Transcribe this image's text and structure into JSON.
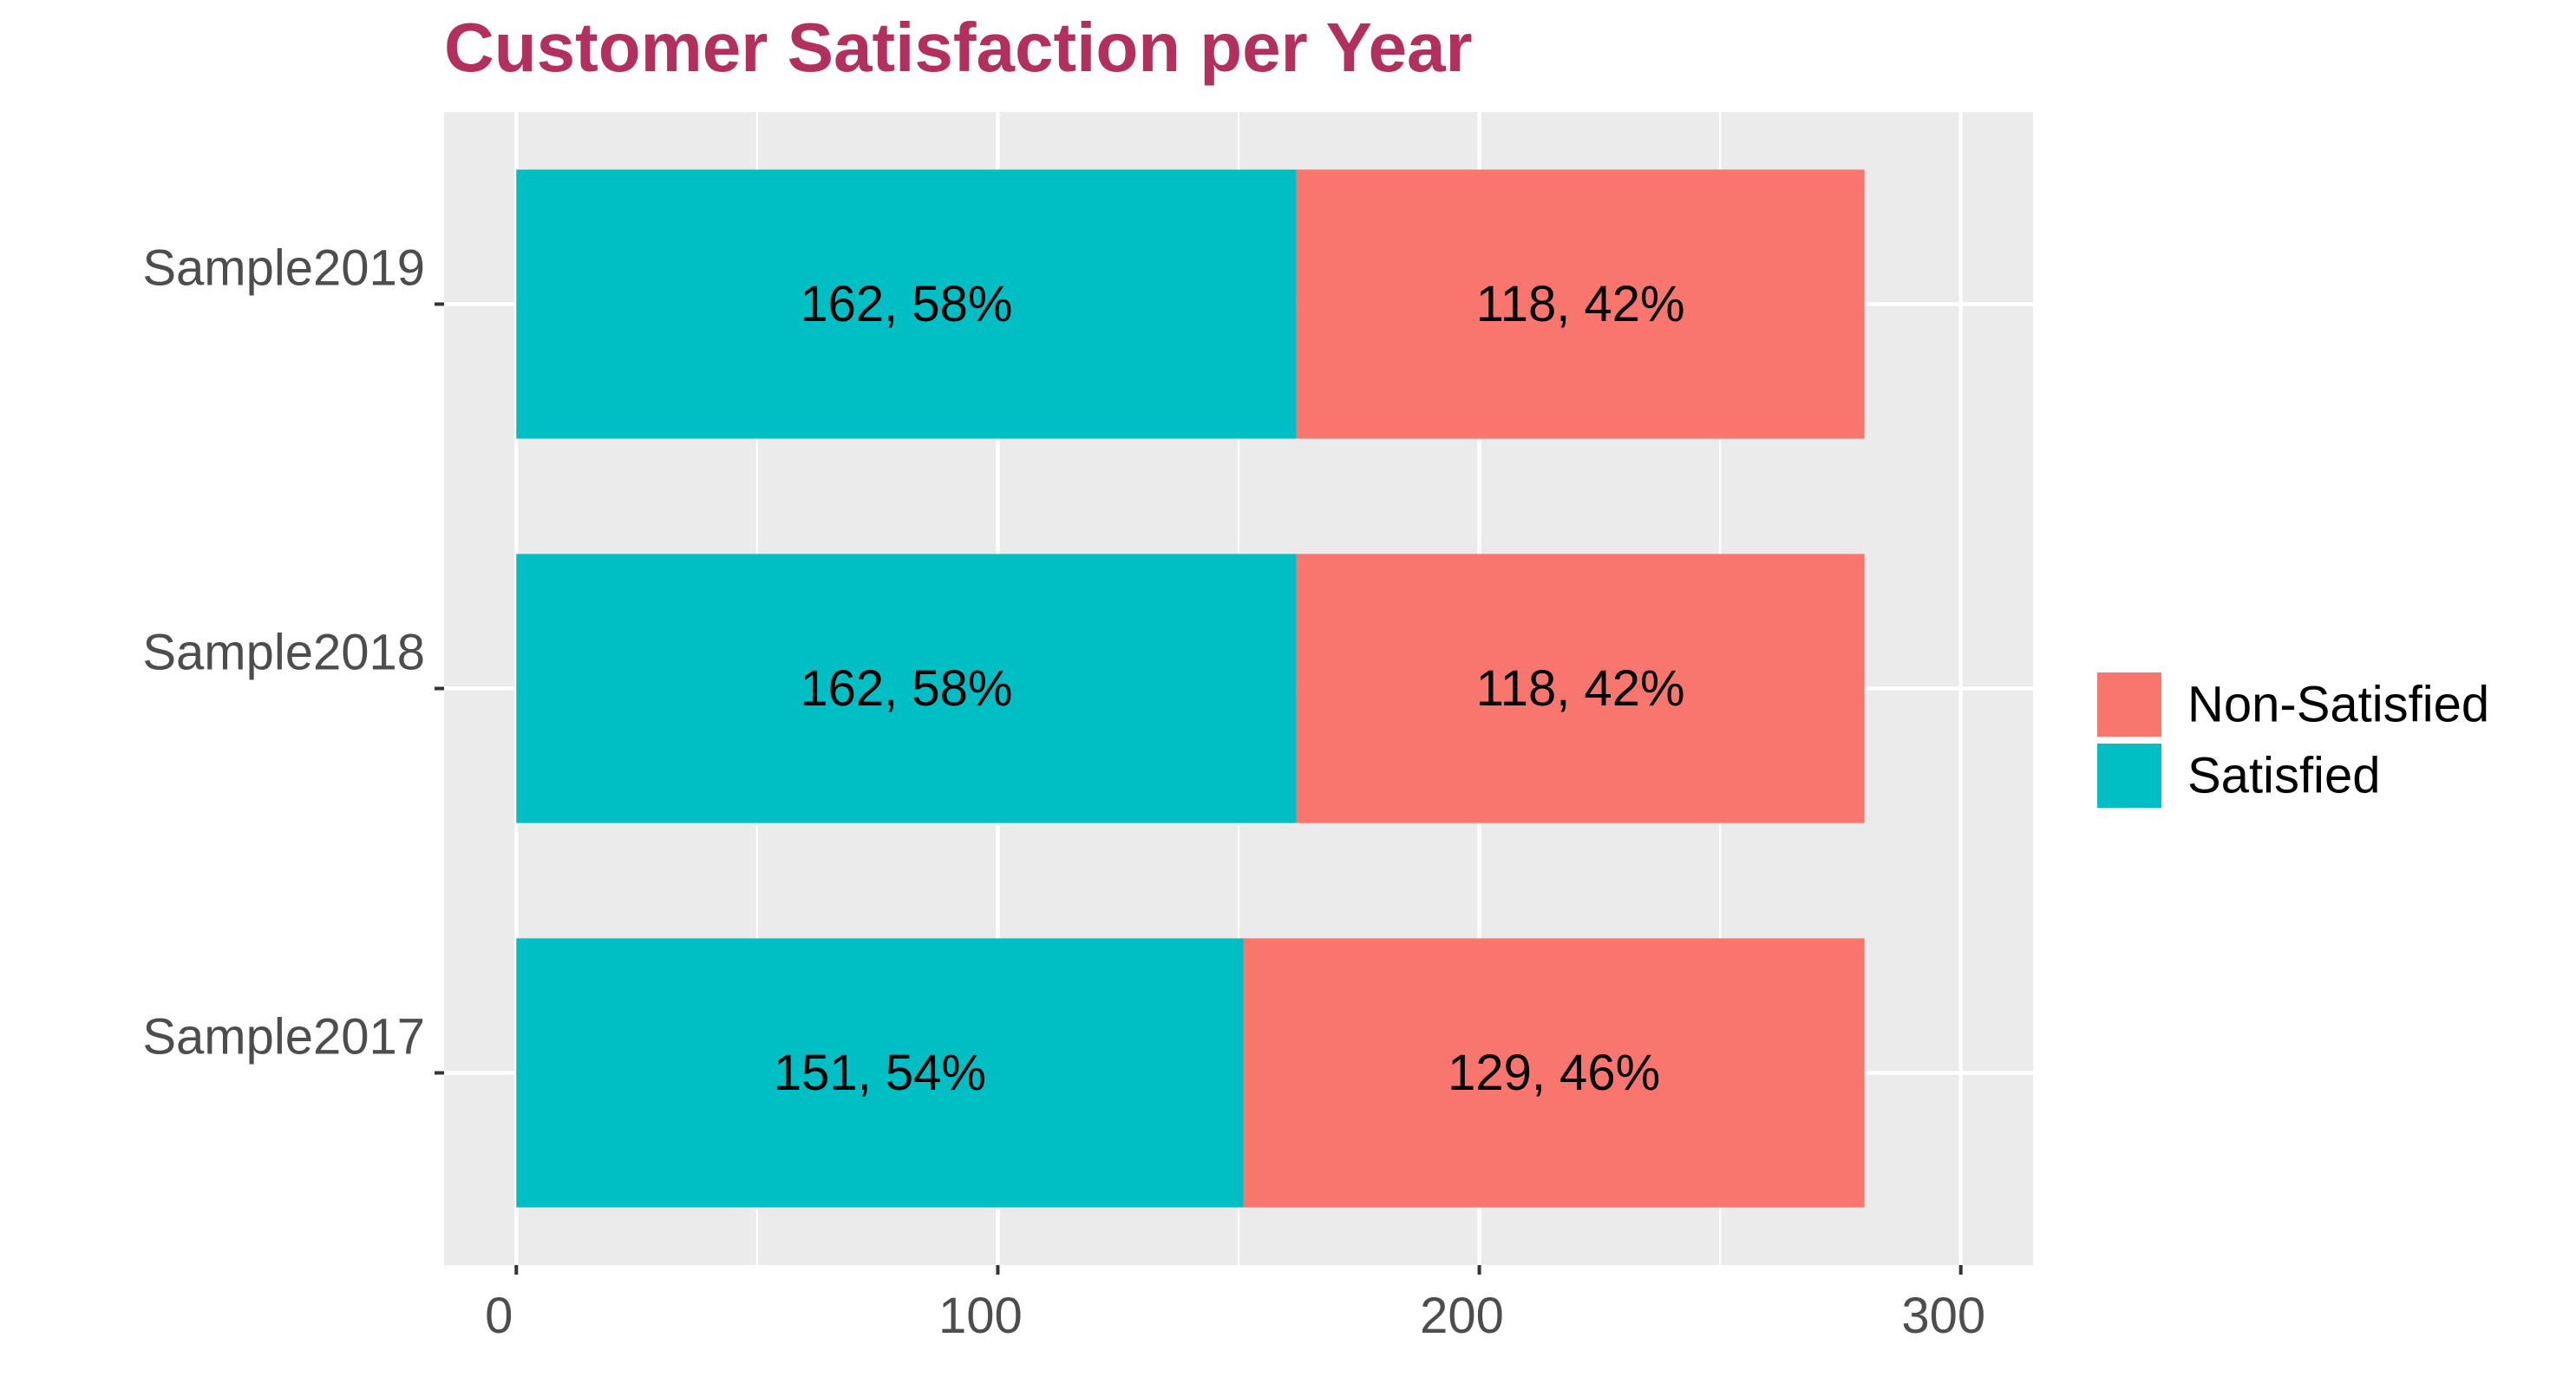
{
  "chart_data": {
    "type": "bar",
    "orientation": "horizontal",
    "stacked": true,
    "title": "Customer Satisfaction per Year",
    "xlabel": "",
    "ylabel": "",
    "categories": [
      "Sample2019",
      "Sample2018",
      "Sample2017"
    ],
    "series": [
      {
        "name": "Satisfied",
        "color": "#00bfc4",
        "values": [
          162,
          162,
          151
        ],
        "labels": [
          "162, 58%",
          "162, 58%",
          "151, 54%"
        ]
      },
      {
        "name": "Non-Satisfied",
        "color": "#f8766d",
        "values": [
          118,
          118,
          129
        ],
        "labels": [
          "118, 42%",
          "118, 42%",
          "129, 46%"
        ]
      }
    ],
    "xlim": [
      -15,
      315
    ],
    "x_ticks": [
      0,
      100,
      200,
      300
    ],
    "x_tick_labels": [
      "0",
      "100",
      "200",
      "300"
    ],
    "grid": true,
    "panel_background": "#ebebeb",
    "grid_color": "#ffffff",
    "legend": {
      "placement": "right",
      "entries": [
        "Non-Satisfied",
        "Satisfied"
      ]
    }
  }
}
